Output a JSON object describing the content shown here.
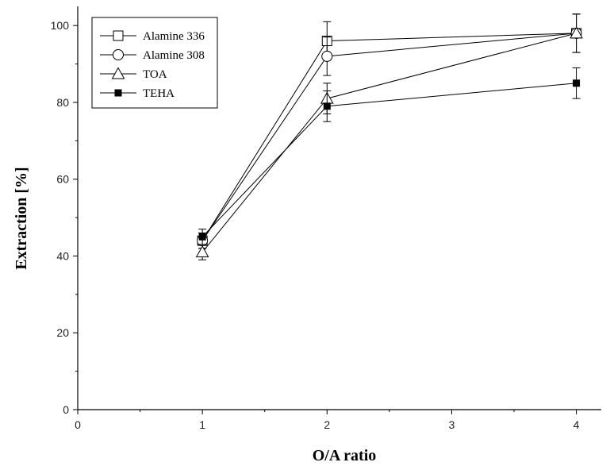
{
  "chart_data": {
    "type": "line",
    "xlabel": "O/A ratio",
    "ylabel": "Extraction [%]",
    "xlim": [
      0,
      4.2
    ],
    "ylim": [
      0,
      105
    ],
    "xticks": [
      0,
      1,
      2,
      3,
      4
    ],
    "yticks": [
      0,
      20,
      40,
      60,
      80,
      100
    ],
    "legend_position": "top-left",
    "grid": false,
    "series": [
      {
        "name": "Alamine 336",
        "marker": "open-square",
        "x": [
          1,
          2,
          4
        ],
        "y": [
          44,
          96,
          98
        ],
        "err": [
          2,
          5,
          5
        ]
      },
      {
        "name": "Alamine 308",
        "marker": "open-circle",
        "x": [
          1,
          2,
          4
        ],
        "y": [
          44,
          92,
          98
        ],
        "err": [
          2,
          5,
          5
        ]
      },
      {
        "name": "TOA",
        "marker": "open-triangle",
        "x": [
          1,
          2,
          4
        ],
        "y": [
          41,
          81,
          98
        ],
        "err": [
          2,
          4,
          5
        ]
      },
      {
        "name": "TEHA",
        "marker": "filled-square",
        "x": [
          1,
          2,
          4
        ],
        "y": [
          45,
          79,
          85
        ],
        "err": [
          2,
          4,
          4
        ]
      }
    ]
  }
}
